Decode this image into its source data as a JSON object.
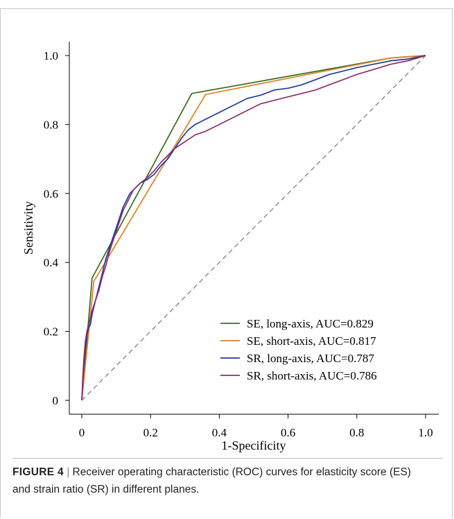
{
  "caption": {
    "label": "FIGURE 4",
    "separator": "|",
    "text": "Receiver operating characteristic (ROC) curves for elasticity score (ES) and strain ratio (SR) in different planes."
  },
  "chart_data": {
    "type": "line",
    "title": "",
    "xlabel": "1-Specificity",
    "ylabel": "Sensitivity",
    "xlim": [
      0,
      1
    ],
    "ylim": [
      0,
      1
    ],
    "x_ticks": [
      "0",
      "0.2",
      "0.4",
      "0.6",
      "0.8",
      "1.0"
    ],
    "y_ticks": [
      "0",
      "0.2",
      "0.4",
      "0.6",
      "0.8",
      "1.0"
    ],
    "grid": false,
    "legend_position": "bottom-right",
    "reference_line": {
      "x": [
        0,
        1
      ],
      "y": [
        0,
        1
      ],
      "style": "dashed",
      "color": "#888888"
    },
    "series": [
      {
        "name": "SE, long-axis, AUC=0.829",
        "color": "#3a6b1f",
        "x": [
          0,
          0.03,
          0.32,
          0.9,
          1.0
        ],
        "y": [
          0,
          0.355,
          0.89,
          0.993,
          1.0
        ]
      },
      {
        "name": "SE, short-axis, AUC=0.817",
        "color": "#d98324",
        "x": [
          0,
          0.035,
          0.36,
          0.9,
          1.0
        ],
        "y": [
          0,
          0.345,
          0.887,
          0.993,
          1.0
        ]
      },
      {
        "name": "SR, long-axis, AUC=0.787",
        "color": "#1f3a9a",
        "x": [
          0,
          0.003,
          0.006,
          0.01,
          0.015,
          0.02,
          0.025,
          0.03,
          0.04,
          0.05,
          0.06,
          0.07,
          0.08,
          0.09,
          0.1,
          0.11,
          0.12,
          0.13,
          0.14,
          0.15,
          0.17,
          0.19,
          0.21,
          0.23,
          0.25,
          0.27,
          0.29,
          0.31,
          0.33,
          0.36,
          0.39,
          0.42,
          0.45,
          0.48,
          0.52,
          0.56,
          0.6,
          0.64,
          0.68,
          0.72,
          0.76,
          0.8,
          0.85,
          0.9,
          0.95,
          1.0
        ],
        "y": [
          0,
          0.05,
          0.1,
          0.15,
          0.19,
          0.21,
          0.22,
          0.25,
          0.29,
          0.33,
          0.37,
          0.41,
          0.44,
          0.47,
          0.5,
          0.53,
          0.56,
          0.58,
          0.6,
          0.61,
          0.63,
          0.64,
          0.655,
          0.68,
          0.7,
          0.73,
          0.76,
          0.785,
          0.8,
          0.815,
          0.83,
          0.845,
          0.86,
          0.875,
          0.885,
          0.9,
          0.905,
          0.915,
          0.93,
          0.945,
          0.955,
          0.965,
          0.975,
          0.985,
          0.99,
          1.0
        ]
      },
      {
        "name": "SR, short-axis, AUC=0.786",
        "color": "#8e2c6b",
        "x": [
          0,
          0.003,
          0.006,
          0.01,
          0.015,
          0.02,
          0.03,
          0.04,
          0.05,
          0.06,
          0.07,
          0.08,
          0.09,
          0.1,
          0.11,
          0.12,
          0.13,
          0.14,
          0.15,
          0.16,
          0.17,
          0.19,
          0.21,
          0.23,
          0.25,
          0.27,
          0.3,
          0.33,
          0.36,
          0.4,
          0.44,
          0.48,
          0.52,
          0.56,
          0.6,
          0.64,
          0.68,
          0.72,
          0.76,
          0.8,
          0.85,
          0.9,
          0.95,
          1.0
        ],
        "y": [
          0,
          0.07,
          0.12,
          0.17,
          0.2,
          0.22,
          0.26,
          0.29,
          0.32,
          0.36,
          0.39,
          0.43,
          0.46,
          0.49,
          0.52,
          0.55,
          0.57,
          0.59,
          0.61,
          0.62,
          0.63,
          0.645,
          0.665,
          0.69,
          0.71,
          0.73,
          0.75,
          0.77,
          0.78,
          0.8,
          0.82,
          0.84,
          0.86,
          0.87,
          0.88,
          0.89,
          0.9,
          0.915,
          0.93,
          0.945,
          0.96,
          0.975,
          0.985,
          1.0
        ]
      }
    ]
  }
}
